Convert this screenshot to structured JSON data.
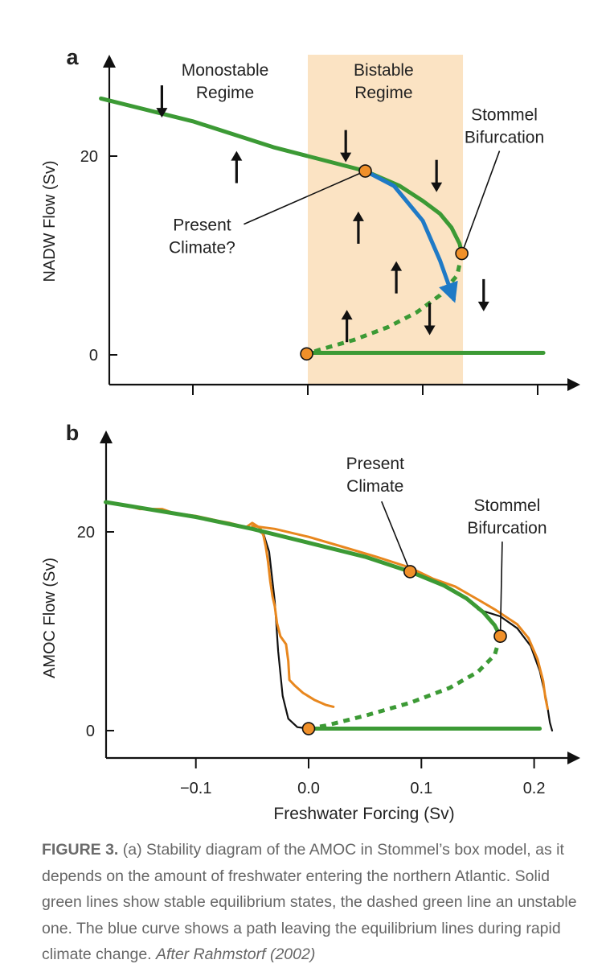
{
  "colors": {
    "stable": "#3c9a35",
    "unstable": "#3c9a35",
    "path_blue": "#1f7ac6",
    "observed": "#e8871e",
    "model_black": "#111111",
    "bistable_band": "#fbe3c3",
    "marker_fill": "#f0902a"
  },
  "chart_data": [
    {
      "panel": "a",
      "type": "line",
      "panel_label": "a",
      "ylabel": "NADW Flow (Sv)",
      "yticks": [
        0,
        20
      ],
      "ylim": [
        -3,
        30
      ],
      "x_tick_marks": [
        -0.1,
        0.0,
        0.1,
        0.2
      ],
      "xlim": [
        -0.18,
        0.24
      ],
      "regions": [
        {
          "label_line1": "Monostable",
          "label_line2": "Regime",
          "x_range": [
            -0.18,
            0.0
          ]
        },
        {
          "label_line1": "Bistable",
          "label_line2": "Regime",
          "x_range": [
            0.0,
            0.135
          ]
        }
      ],
      "series": [
        {
          "style": "stable",
          "points": [
            [
              -0.18,
              25.8
            ],
            [
              -0.1,
              23.5
            ],
            [
              -0.03,
              20.9
            ],
            [
              0.0,
              20.0
            ],
            [
              0.05,
              18.5
            ],
            [
              0.08,
              17.0
            ],
            [
              0.1,
              15.5
            ],
            [
              0.115,
              14.2
            ],
            [
              0.125,
              12.8
            ],
            [
              0.132,
              11.2
            ],
            [
              0.134,
              10.2
            ]
          ]
        },
        {
          "style": "unstable",
          "points": [
            [
              0.134,
              10.2
            ],
            [
              0.13,
              8.0
            ],
            [
              0.115,
              6.0
            ],
            [
              0.095,
              4.3
            ],
            [
              0.07,
              2.8
            ],
            [
              0.04,
              1.5
            ],
            [
              0.01,
              0.5
            ],
            [
              -0.001,
              0.1
            ]
          ]
        },
        {
          "style": "stable",
          "points": [
            [
              -0.001,
              0.2
            ],
            [
              0.205,
              0.2
            ]
          ]
        },
        {
          "style": "path",
          "points": [
            [
              0.05,
              18.5
            ],
            [
              0.075,
              17.0
            ],
            [
              0.1,
              13.5
            ],
            [
              0.115,
              9.5
            ],
            [
              0.127,
              5.6
            ]
          ]
        }
      ],
      "markers": [
        [
          0.05,
          18.5
        ],
        [
          0.134,
          10.2
        ],
        [
          -0.001,
          0.1
        ]
      ],
      "arrows": [
        {
          "x": -0.127,
          "y": 25.5,
          "dir": "down"
        },
        {
          "x": -0.062,
          "y": 18.9,
          "dir": "up"
        },
        {
          "x": 0.033,
          "y": 21.0,
          "dir": "down"
        },
        {
          "x": 0.044,
          "y": 12.8,
          "dir": "up"
        },
        {
          "x": 0.112,
          "y": 18.0,
          "dir": "down"
        },
        {
          "x": 0.077,
          "y": 7.8,
          "dir": "up"
        },
        {
          "x": 0.034,
          "y": 2.9,
          "dir": "up"
        },
        {
          "x": 0.106,
          "y": 3.6,
          "dir": "down"
        },
        {
          "x": 0.153,
          "y": 6.0,
          "dir": "down"
        }
      ],
      "annotations": [
        {
          "id": "present",
          "line1": "Present",
          "line2": "Climate?",
          "x": -0.092,
          "y": 12.5,
          "to": [
            0.05,
            18.5
          ]
        },
        {
          "id": "stommel",
          "line1": "Stommel",
          "line2": "Bifurcation",
          "x": 0.171,
          "y": 23.6,
          "to": [
            0.134,
            10.2
          ]
        }
      ]
    },
    {
      "panel": "b",
      "type": "line",
      "panel_label": "b",
      "ylabel": "AMOC Flow (Sv)",
      "xlabel": "Freshwater Forcing (Sv)",
      "xticks": [
        {
          "value": -0.1,
          "label": "−0.1"
        },
        {
          "value": 0.0,
          "label": "0.0"
        },
        {
          "value": 0.1,
          "label": "0.1"
        },
        {
          "value": 0.2,
          "label": "0.2"
        }
      ],
      "yticks": [
        0,
        20
      ],
      "ylim": [
        -3,
        30
      ],
      "xlim": [
        -0.18,
        0.24
      ],
      "series": [
        {
          "style": "stable",
          "points": [
            [
              -0.18,
              23.0
            ],
            [
              -0.1,
              21.5
            ],
            [
              -0.05,
              20.3
            ],
            [
              0.0,
              18.9
            ],
            [
              0.05,
              17.5
            ],
            [
              0.09,
              16.0
            ],
            [
              0.12,
              14.6
            ],
            [
              0.14,
              13.3
            ],
            [
              0.155,
              11.9
            ],
            [
              0.165,
              10.6
            ],
            [
              0.17,
              9.5
            ]
          ]
        },
        {
          "style": "unstable",
          "points": [
            [
              0.17,
              9.5
            ],
            [
              0.165,
              7.6
            ],
            [
              0.15,
              5.9
            ],
            [
              0.125,
              4.3
            ],
            [
              0.09,
              2.8
            ],
            [
              0.05,
              1.5
            ],
            [
              0.015,
              0.5
            ],
            [
              0.0,
              0.2
            ]
          ]
        },
        {
          "style": "stable",
          "points": [
            [
              0.0,
              0.2
            ],
            [
              0.205,
              0.2
            ]
          ]
        },
        {
          "style": "model",
          "points": [
            [
              -0.05,
              20.4
            ],
            [
              -0.04,
              19.8
            ],
            [
              -0.035,
              18.0
            ],
            [
              -0.03,
              13.0
            ],
            [
              -0.027,
              8.0
            ],
            [
              -0.023,
              3.5
            ],
            [
              -0.018,
              1.2
            ],
            [
              -0.01,
              0.35
            ],
            [
              0.0,
              0.2
            ],
            [
              0.01,
              0.15
            ]
          ]
        },
        {
          "style": "model",
          "points": [
            [
              0.15,
              12.2
            ],
            [
              0.17,
              11.5
            ],
            [
              0.185,
              10.3
            ],
            [
              0.197,
              8.5
            ],
            [
              0.205,
              6.0
            ],
            [
              0.211,
              3.0
            ],
            [
              0.214,
              0.8
            ],
            [
              0.216,
              0.0
            ]
          ]
        },
        {
          "style": "observed",
          "points": [
            [
              -0.16,
              22.6
            ],
            [
              -0.15,
              22.3
            ],
            [
              -0.13,
              22.3
            ],
            [
              -0.12,
              21.9
            ],
            [
              -0.1,
              21.6
            ],
            [
              -0.08,
              21.1
            ],
            [
              -0.07,
              20.9
            ],
            [
              -0.06,
              20.6
            ],
            [
              -0.055,
              20.5
            ],
            [
              -0.05,
              20.9
            ],
            [
              -0.043,
              20.4
            ],
            [
              -0.04,
              19.6
            ],
            [
              -0.038,
              18.5
            ],
            [
              -0.036,
              17.0
            ],
            [
              -0.034,
              15.0
            ],
            [
              -0.032,
              13.5
            ],
            [
              -0.03,
              12.5
            ],
            [
              -0.028,
              10.8
            ],
            [
              -0.025,
              9.5
            ],
            [
              -0.02,
              8.7
            ],
            [
              -0.018,
              7.0
            ],
            [
              -0.017,
              5.1
            ],
            [
              -0.012,
              4.5
            ],
            [
              -0.005,
              3.8
            ],
            [
              0.005,
              3.1
            ],
            [
              0.015,
              2.6
            ],
            [
              0.022,
              2.4
            ]
          ]
        },
        {
          "style": "observed",
          "points": [
            [
              -0.05,
              20.6
            ],
            [
              -0.03,
              20.3
            ],
            [
              0.0,
              19.5
            ],
            [
              0.03,
              18.5
            ],
            [
              0.06,
              17.5
            ],
            [
              0.09,
              16.4
            ],
            [
              0.11,
              15.3
            ],
            [
              0.13,
              14.5
            ],
            [
              0.15,
              13.2
            ],
            [
              0.165,
              12.2
            ],
            [
              0.185,
              10.7
            ],
            [
              0.195,
              9.3
            ],
            [
              0.203,
              7.2
            ],
            [
              0.208,
              5.0
            ],
            [
              0.21,
              3.3
            ],
            [
              0.212,
              2.2
            ]
          ]
        }
      ],
      "markers": [
        [
          0.09,
          16.0
        ],
        [
          0.17,
          9.5
        ],
        [
          0.0,
          0.2
        ]
      ],
      "annotations": [
        {
          "id": "present",
          "line1": "Present",
          "line2": "Climate",
          "x": 0.059,
          "y": 26.3,
          "to": [
            0.09,
            16.0
          ]
        },
        {
          "id": "stommel",
          "line1": "Stommel",
          "line2": "Bifurcation",
          "x": 0.176,
          "y": 22.1,
          "to": [
            0.17,
            9.5
          ]
        }
      ]
    }
  ],
  "caption": {
    "lead": "FIGURE 3.",
    "body": " (a) Stability diagram of the AMOC in Stommel’s box model, as it depends on the amount of freshwater entering the northern Atlantic. Solid green lines show stable equilibrium states, the dashed green line an unstable one. The blue curve shows a path leaving the equilibrium lines during rapid climate change. ",
    "credit": "After Rahmstorf (2002)"
  }
}
